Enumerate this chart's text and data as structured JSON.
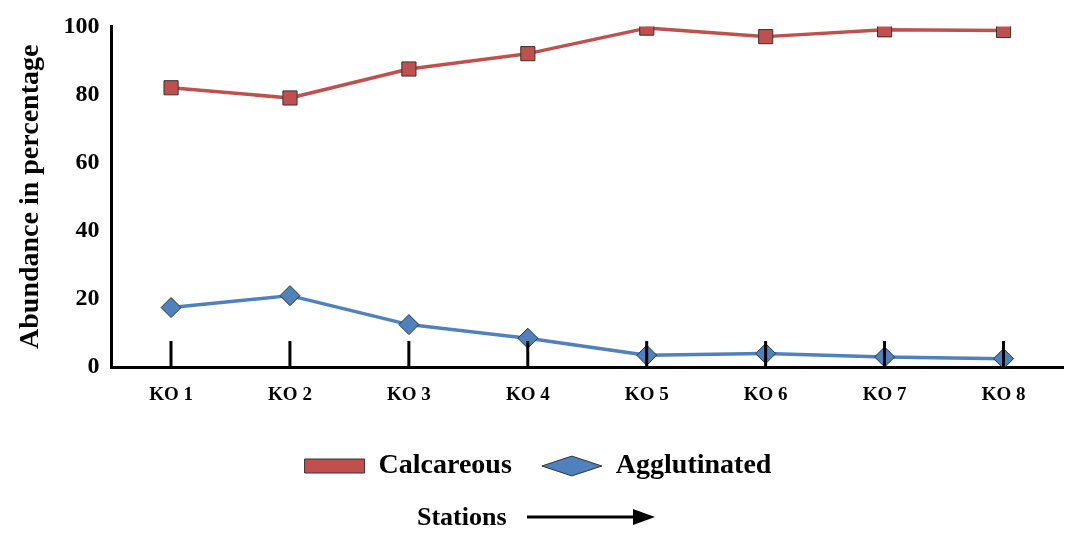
{
  "chart_data": {
    "type": "line",
    "xlabel": "Stations",
    "ylabel": "Abundance in percentage",
    "categories": [
      "KO 1",
      "KO 2",
      "KO 3",
      "KO 4",
      "KO 5",
      "KO 6",
      "KO 7",
      "KO 8"
    ],
    "series": [
      {
        "name": "Calcareous",
        "color": "#c0504d",
        "marker": "square",
        "values": [
          82,
          79,
          87.5,
          92,
          99.5,
          97,
          99,
          98.8
        ]
      },
      {
        "name": "Agglutinated",
        "color": "#4f81bd",
        "marker": "diamond",
        "values": [
          17.5,
          21,
          12.5,
          8.5,
          3.5,
          4,
          3,
          2.5
        ]
      }
    ],
    "ylim": [
      0,
      100
    ],
    "yticks": [
      0,
      20,
      40,
      60,
      80,
      100
    ],
    "grid": false,
    "legend": "bottom"
  }
}
